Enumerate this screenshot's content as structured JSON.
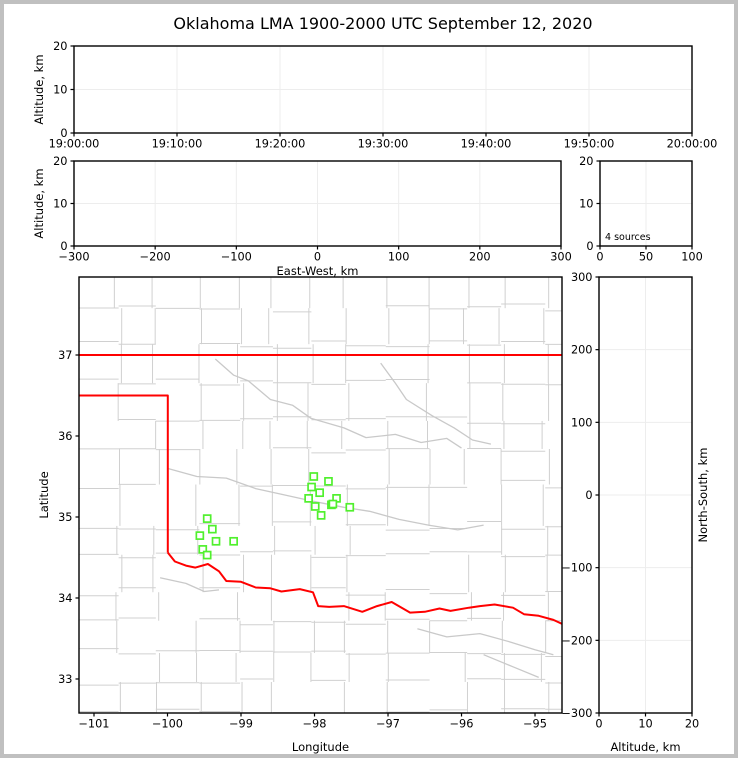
{
  "title": "Oklahoma LMA 1900-2000 UTC September 12, 2020",
  "colors": {
    "state_border": "#ff0000",
    "county_lines": "#d0d0d0",
    "rivers": "#c9c9c9",
    "stations": "#50f02d",
    "gridlines": "#ededed",
    "axis_frame": "#000000",
    "figure_border": "#c0c0c0",
    "background": "#ffffff"
  },
  "chart_data": [
    {
      "id": "time-height",
      "type": "scatter",
      "title": "",
      "xlabel": "",
      "ylabel": "Altitude, km",
      "xlim": [
        0,
        3600
      ],
      "ylim": [
        0,
        20
      ],
      "xticks": {
        "values": [
          0,
          600,
          1200,
          1800,
          2400,
          3000,
          3600
        ],
        "labels": [
          "19:00:00",
          "19:10:00",
          "19:20:00",
          "19:30:00",
          "19:40:00",
          "19:50:00",
          "20:00:00"
        ]
      },
      "yticks": {
        "values": [
          0,
          10,
          20
        ],
        "labels": [
          "0",
          "10",
          "20"
        ]
      },
      "grid_x": [
        600,
        1200,
        1800,
        2400,
        3000
      ],
      "grid_y": [
        10
      ],
      "points": []
    },
    {
      "id": "ew-height",
      "type": "scatter",
      "xlabel": "East-West, km",
      "ylabel": "Altitude, km",
      "xlim": [
        -300,
        300
      ],
      "ylim": [
        0,
        20
      ],
      "xticks": {
        "values": [
          -300,
          -200,
          -100,
          0,
          100,
          200,
          300
        ],
        "labels": [
          "−300",
          "−200",
          "−100",
          "0",
          "100",
          "200",
          "300"
        ]
      },
      "yticks": {
        "values": [
          0,
          10,
          20
        ],
        "labels": [
          "0",
          "10",
          "20"
        ]
      },
      "grid_x": [
        -200,
        -100,
        0,
        100,
        200
      ],
      "grid_y": [
        10
      ],
      "points": []
    },
    {
      "id": "alt-histogram",
      "type": "scatter",
      "xlabel": "",
      "ylabel": "",
      "annotation": "4 sources",
      "xlim": [
        0,
        100
      ],
      "ylim": [
        0,
        20
      ],
      "xticks": {
        "values": [
          0,
          50,
          100
        ],
        "labels": [
          "0",
          "50",
          "100"
        ]
      },
      "yticks": {
        "values": [
          0,
          10,
          20
        ],
        "labels": [
          "0",
          "10",
          "20"
        ]
      },
      "grid_x": [
        50
      ],
      "grid_y": [
        10
      ],
      "points": []
    },
    {
      "id": "plan-view",
      "type": "scatter",
      "xlabel": "Longitude",
      "ylabel": "Latitude",
      "xlim": [
        -101.204,
        -94.633
      ],
      "ylim": [
        32.58,
        37.963
      ],
      "xticks": {
        "values": [
          -101,
          -100,
          -99,
          -98,
          -97,
          -96,
          -95
        ],
        "labels": [
          "−101",
          "−100",
          "−99",
          "−98",
          "−97",
          "−96",
          "−95"
        ]
      },
      "yticks": {
        "values": [
          33,
          34,
          35,
          36,
          37
        ],
        "labels": [
          "33",
          "34",
          "35",
          "36",
          "37"
        ]
      },
      "grid_x": [],
      "grid_y": [],
      "stations_lon_lat": [
        [
          -99.46,
          34.98
        ],
        [
          -99.39,
          34.85
        ],
        [
          -99.56,
          34.77
        ],
        [
          -99.34,
          34.7
        ],
        [
          -99.1,
          34.7
        ],
        [
          -99.52,
          34.6
        ],
        [
          -99.46,
          34.53
        ],
        [
          -98.01,
          35.5
        ],
        [
          -97.81,
          35.44
        ],
        [
          -98.04,
          35.37
        ],
        [
          -97.93,
          35.3
        ],
        [
          -98.08,
          35.23
        ],
        [
          -97.7,
          35.23
        ],
        [
          -97.99,
          35.13
        ],
        [
          -97.77,
          35.15
        ],
        [
          -97.52,
          35.12
        ],
        [
          -97.91,
          35.02
        ],
        [
          -97.75,
          35.16
        ]
      ],
      "state_border": [
        [
          [
            -101.204,
            37
          ],
          [
            -94.633,
            37
          ]
        ],
        [
          [
            -101.204,
            36.5
          ],
          [
            -99.996,
            36.5
          ],
          [
            -99.996,
            34.56
          ]
        ],
        [
          [
            -99.996,
            34.56
          ],
          [
            -99.9,
            34.45
          ],
          [
            -99.75,
            34.4
          ],
          [
            -99.62,
            34.375
          ],
          [
            -99.45,
            34.42
          ],
          [
            -99.3,
            34.33
          ],
          [
            -99.2,
            34.21
          ],
          [
            -99.0,
            34.2
          ],
          [
            -98.8,
            34.13
          ],
          [
            -98.6,
            34.12
          ],
          [
            -98.45,
            34.08
          ],
          [
            -98.2,
            34.11
          ],
          [
            -98.02,
            34.07
          ],
          [
            -97.95,
            33.9
          ],
          [
            -97.8,
            33.89
          ],
          [
            -97.6,
            33.9
          ],
          [
            -97.35,
            33.83
          ],
          [
            -97.15,
            33.9
          ],
          [
            -96.95,
            33.95
          ],
          [
            -96.7,
            33.82
          ],
          [
            -96.5,
            33.83
          ],
          [
            -96.3,
            33.87
          ],
          [
            -96.15,
            33.84
          ],
          [
            -95.9,
            33.88
          ],
          [
            -95.75,
            33.9
          ],
          [
            -95.55,
            33.92
          ],
          [
            -95.3,
            33.88
          ],
          [
            -95.15,
            33.8
          ],
          [
            -94.95,
            33.78
          ],
          [
            -94.75,
            33.73
          ],
          [
            -94.633,
            33.68
          ]
        ]
      ],
      "rivers": [
        [
          [
            -99.35,
            36.95
          ],
          [
            -99.1,
            36.75
          ],
          [
            -98.9,
            36.68
          ],
          [
            -98.6,
            36.45
          ],
          [
            -98.3,
            36.38
          ],
          [
            -98.05,
            36.22
          ],
          [
            -97.6,
            36.1
          ],
          [
            -97.3,
            35.98
          ],
          [
            -96.9,
            36.02
          ],
          [
            -96.55,
            35.92
          ],
          [
            -96.2,
            35.97
          ],
          [
            -96.0,
            35.85
          ]
        ],
        [
          [
            -97.1,
            36.9
          ],
          [
            -96.9,
            36.65
          ],
          [
            -96.75,
            36.45
          ],
          [
            -96.4,
            36.25
          ],
          [
            -96.1,
            36.1
          ],
          [
            -95.85,
            35.95
          ],
          [
            -95.6,
            35.9
          ]
        ],
        [
          [
            -100.0,
            35.6
          ],
          [
            -99.6,
            35.5
          ],
          [
            -99.2,
            35.48
          ],
          [
            -98.8,
            35.35
          ],
          [
            -98.45,
            35.28
          ],
          [
            -98.05,
            35.2
          ],
          [
            -97.6,
            35.12
          ],
          [
            -97.25,
            35.07
          ],
          [
            -96.85,
            34.97
          ],
          [
            -96.45,
            34.9
          ],
          [
            -96.05,
            34.84
          ],
          [
            -95.7,
            34.9
          ]
        ],
        [
          [
            -100.1,
            34.25
          ],
          [
            -99.75,
            34.18
          ],
          [
            -99.5,
            34.08
          ],
          [
            -99.3,
            34.1
          ]
        ],
        [
          [
            -96.6,
            33.62
          ],
          [
            -96.2,
            33.52
          ],
          [
            -95.75,
            33.56
          ],
          [
            -95.35,
            33.46
          ],
          [
            -95.0,
            33.36
          ],
          [
            -94.75,
            33.3
          ]
        ],
        [
          [
            -95.7,
            33.3
          ],
          [
            -95.3,
            33.15
          ],
          [
            -94.95,
            33.02
          ]
        ]
      ]
    },
    {
      "id": "ns-height",
      "type": "scatter",
      "xlabel": "Altitude, km",
      "ylabel_right": "North-South, km",
      "xlim": [
        0,
        20
      ],
      "ylim": [
        -300,
        300
      ],
      "xticks": {
        "values": [
          0,
          10,
          20
        ],
        "labels": [
          "0",
          "10",
          "20"
        ]
      },
      "yticks": {
        "values": [
          -300,
          -200,
          -100,
          0,
          100,
          200,
          300
        ],
        "labels": [
          "−300",
          "−200",
          "−100",
          "0",
          "100",
          "200",
          "300"
        ]
      },
      "grid_x": [
        10
      ],
      "grid_y": [
        -200,
        -100,
        0,
        100,
        200
      ],
      "points": []
    }
  ]
}
